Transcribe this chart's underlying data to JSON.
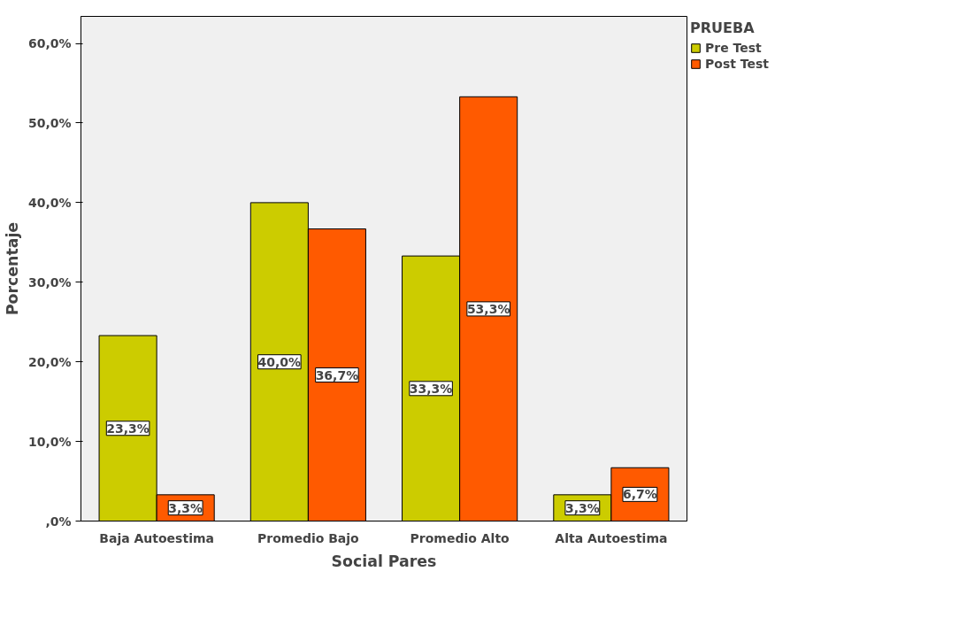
{
  "chart_data": {
    "type": "bar",
    "xlabel": "Social Pares",
    "ylabel": "Porcentaje",
    "legend_title": "PRUEBA",
    "categories": [
      "Baja Autoestima",
      "Promedio Bajo",
      "Promedio Alto",
      "Alta Autoestima"
    ],
    "series": [
      {
        "name": "Pre Test",
        "color": "#cccc00",
        "values": [
          23.3,
          40.0,
          33.3,
          3.3
        ],
        "value_labels": [
          "23,3%",
          "40,0%",
          "33,3%",
          "3,3%"
        ]
      },
      {
        "name": "Post Test",
        "color": "#ff5a00",
        "values": [
          3.3,
          36.7,
          53.3,
          6.7
        ],
        "value_labels": [
          "3,3%",
          "36,7%",
          "53,3%",
          "6,7%"
        ]
      }
    ],
    "ylim": [
      0,
      63.4
    ],
    "yticks": [
      {
        "value": 0,
        "label": ",0%"
      },
      {
        "value": 10,
        "label": "10,0%"
      },
      {
        "value": 20,
        "label": "20,0%"
      },
      {
        "value": 30,
        "label": "30,0%"
      },
      {
        "value": 40,
        "label": "40,0%"
      },
      {
        "value": 50,
        "label": "50,0%"
      },
      {
        "value": 60,
        "label": "60,0%"
      }
    ],
    "legend": "top right",
    "grid": false
  }
}
